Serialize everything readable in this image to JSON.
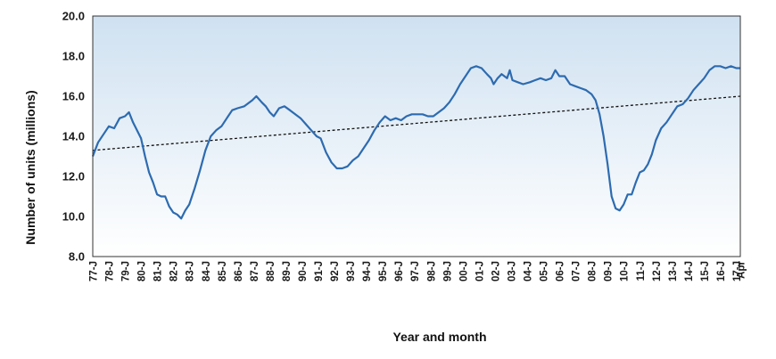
{
  "chart_data": {
    "type": "line",
    "xlabel": "Year and month",
    "ylabel": "Number of units (millions)",
    "ylim": [
      8.0,
      20.0
    ],
    "y_ticks": [
      "8.0",
      "10.0",
      "12.0",
      "14.0",
      "16.0",
      "18.0",
      "20.0"
    ],
    "x_tick_labels": [
      "77-J",
      "78-J",
      "79-J",
      "80-J",
      "81-J",
      "82-J",
      "83-J",
      "84-J",
      "85-J",
      "86-J",
      "87-J",
      "88-J",
      "89-J",
      "90-J",
      "91-J",
      "92-J",
      "93-J",
      "94-J",
      "95-J",
      "96-J",
      "97-J",
      "98-J",
      "99-J",
      "00-J",
      "01-J",
      "02-J",
      "03-J",
      "04-J",
      "05-J",
      "06-J",
      "07-J",
      "08-J",
      "09-J",
      "10-J",
      "11-J",
      "12-J",
      "13-J",
      "14-J",
      "15-J",
      "16-J",
      "17-J",
      "Apr"
    ],
    "x_range": [
      "1977-01",
      "2017-04"
    ],
    "grid": false,
    "legend": "none",
    "series": [
      {
        "type": "line",
        "values": [
          [
            "1977-01",
            13.0
          ],
          [
            "1977-05",
            13.7
          ],
          [
            "1977-09",
            14.1
          ],
          [
            "1978-01",
            14.5
          ],
          [
            "1978-05",
            14.4
          ],
          [
            "1978-09",
            14.9
          ],
          [
            "1979-01",
            15.0
          ],
          [
            "1979-04",
            15.2
          ],
          [
            "1979-07",
            14.7
          ],
          [
            "1979-10",
            14.3
          ],
          [
            "1980-01",
            13.9
          ],
          [
            "1980-04",
            13.0
          ],
          [
            "1980-07",
            12.2
          ],
          [
            "1980-10",
            11.7
          ],
          [
            "1981-01",
            11.1
          ],
          [
            "1981-04",
            11.0
          ],
          [
            "1981-07",
            11.0
          ],
          [
            "1981-10",
            10.5
          ],
          [
            "1982-01",
            10.2
          ],
          [
            "1982-04",
            10.1
          ],
          [
            "1982-07",
            9.9
          ],
          [
            "1982-10",
            10.3
          ],
          [
            "1983-01",
            10.6
          ],
          [
            "1983-05",
            11.4
          ],
          [
            "1983-09",
            12.3
          ],
          [
            "1984-01",
            13.3
          ],
          [
            "1984-05",
            14.0
          ],
          [
            "1984-09",
            14.3
          ],
          [
            "1985-01",
            14.5
          ],
          [
            "1985-05",
            14.9
          ],
          [
            "1985-09",
            15.3
          ],
          [
            "1986-01",
            15.4
          ],
          [
            "1986-06",
            15.5
          ],
          [
            "1986-12",
            15.8
          ],
          [
            "1987-03",
            16.0
          ],
          [
            "1987-07",
            15.7
          ],
          [
            "1987-10",
            15.5
          ],
          [
            "1988-01",
            15.2
          ],
          [
            "1988-04",
            15.0
          ],
          [
            "1988-08",
            15.4
          ],
          [
            "1988-12",
            15.5
          ],
          [
            "1989-04",
            15.3
          ],
          [
            "1989-08",
            15.1
          ],
          [
            "1989-12",
            14.9
          ],
          [
            "1990-04",
            14.6
          ],
          [
            "1990-08",
            14.3
          ],
          [
            "1990-12",
            14.0
          ],
          [
            "1991-03",
            13.9
          ],
          [
            "1991-07",
            13.2
          ],
          [
            "1991-11",
            12.7
          ],
          [
            "1992-03",
            12.4
          ],
          [
            "1992-07",
            12.4
          ],
          [
            "1992-11",
            12.5
          ],
          [
            "1993-03",
            12.8
          ],
          [
            "1993-07",
            13.0
          ],
          [
            "1993-11",
            13.4
          ],
          [
            "1994-03",
            13.8
          ],
          [
            "1994-07",
            14.3
          ],
          [
            "1994-11",
            14.7
          ],
          [
            "1995-03",
            15.0
          ],
          [
            "1995-07",
            14.8
          ],
          [
            "1995-11",
            14.9
          ],
          [
            "1996-03",
            14.8
          ],
          [
            "1996-07",
            15.0
          ],
          [
            "1996-11",
            15.1
          ],
          [
            "1997-03",
            15.1
          ],
          [
            "1997-07",
            15.1
          ],
          [
            "1997-11",
            15.0
          ],
          [
            "1998-03",
            15.0
          ],
          [
            "1998-07",
            15.2
          ],
          [
            "1998-11",
            15.4
          ],
          [
            "1999-03",
            15.7
          ],
          [
            "1999-07",
            16.1
          ],
          [
            "1999-11",
            16.6
          ],
          [
            "2000-03",
            17.0
          ],
          [
            "2000-07",
            17.4
          ],
          [
            "2000-11",
            17.5
          ],
          [
            "2001-03",
            17.4
          ],
          [
            "2001-07",
            17.1
          ],
          [
            "2001-10",
            16.9
          ],
          [
            "2001-12",
            16.6
          ],
          [
            "2002-03",
            16.9
          ],
          [
            "2002-06",
            17.1
          ],
          [
            "2002-10",
            16.9
          ],
          [
            "2002-12",
            17.3
          ],
          [
            "2003-02",
            16.8
          ],
          [
            "2003-06",
            16.7
          ],
          [
            "2003-10",
            16.6
          ],
          [
            "2004-03",
            16.7
          ],
          [
            "2004-07",
            16.8
          ],
          [
            "2004-11",
            16.9
          ],
          [
            "2005-03",
            16.8
          ],
          [
            "2005-07",
            16.9
          ],
          [
            "2005-10",
            17.3
          ],
          [
            "2006-01",
            17.0
          ],
          [
            "2006-05",
            17.0
          ],
          [
            "2006-09",
            16.6
          ],
          [
            "2007-01",
            16.5
          ],
          [
            "2007-05",
            16.4
          ],
          [
            "2007-09",
            16.3
          ],
          [
            "2008-01",
            16.1
          ],
          [
            "2008-04",
            15.8
          ],
          [
            "2008-07",
            15.1
          ],
          [
            "2008-10",
            14.0
          ],
          [
            "2009-01",
            12.6
          ],
          [
            "2009-04",
            11.0
          ],
          [
            "2009-07",
            10.4
          ],
          [
            "2009-10",
            10.3
          ],
          [
            "2010-01",
            10.6
          ],
          [
            "2010-04",
            11.1
          ],
          [
            "2010-07",
            11.1
          ],
          [
            "2010-10",
            11.7
          ],
          [
            "2011-01",
            12.2
          ],
          [
            "2011-04",
            12.3
          ],
          [
            "2011-07",
            12.6
          ],
          [
            "2011-10",
            13.1
          ],
          [
            "2012-01",
            13.8
          ],
          [
            "2012-05",
            14.4
          ],
          [
            "2012-09",
            14.7
          ],
          [
            "2013-01",
            15.1
          ],
          [
            "2013-05",
            15.5
          ],
          [
            "2013-09",
            15.6
          ],
          [
            "2014-01",
            15.9
          ],
          [
            "2014-05",
            16.3
          ],
          [
            "2014-09",
            16.6
          ],
          [
            "2015-01",
            16.9
          ],
          [
            "2015-05",
            17.3
          ],
          [
            "2015-09",
            17.5
          ],
          [
            "2016-01",
            17.5
          ],
          [
            "2016-05",
            17.4
          ],
          [
            "2016-09",
            17.5
          ],
          [
            "2017-01",
            17.4
          ],
          [
            "2017-04",
            17.4
          ]
        ]
      },
      {
        "type": "trendline",
        "style": "dashed",
        "values": [
          [
            "1977-01",
            13.3
          ],
          [
            "2017-04",
            16.0
          ]
        ]
      }
    ],
    "colors": {
      "line": "#2d6bb0",
      "trend": "#111111",
      "gradient_top": "#cfe1f1",
      "gradient_bottom": "#ffffff",
      "frame": "#333333"
    }
  }
}
